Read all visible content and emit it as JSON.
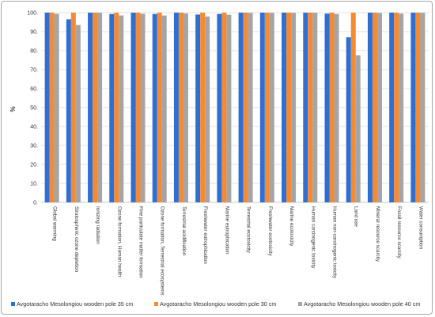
{
  "chart_data": {
    "type": "bar",
    "ylabel": "%",
    "ylim": [
      0,
      100
    ],
    "yticks": [
      "0.",
      "10.",
      "20.",
      "30.",
      "40.",
      "50.",
      "60.",
      "70.",
      "80.",
      "90.",
      "100."
    ],
    "grid": true,
    "legend_position": "bottom",
    "categories": [
      "Global warming",
      "Stratospheric ozone depletion",
      "Ionizing radiation",
      "Ozone formation, Human health",
      "Fine particulate matter formation",
      "Ozone formation, Terrestrial ecosystems",
      "Terrestrial acidification",
      "Freshwater eutrophication",
      "Marine eutrophication",
      "Terrestrial ecotoxicity",
      "Freshwater ecotoxicity",
      "Marine ecotoxicity",
      "Human carcinogenic toxicity",
      "Human non-carcinogenic toxicity",
      "Land use",
      "Mineral resource scarcity",
      "Fossil resource scarcity",
      "Water consumption"
    ],
    "series": [
      {
        "name": "Avgotaracho Mesolongiou wooden pole 35 cm",
        "color": "#2e6fd6",
        "values": [
          100,
          96.5,
          100,
          99.3,
          100,
          99.3,
          100,
          99,
          99.3,
          100,
          100,
          100,
          100,
          99.5,
          87,
          100,
          100,
          100
        ]
      },
      {
        "name": "Avgotaracho Mesolongiou wooden pole 30 cm",
        "color": "#f58a32",
        "values": [
          100,
          100,
          100,
          100,
          100,
          100,
          100,
          100,
          100,
          100,
          100,
          100,
          100,
          100,
          100,
          100,
          100,
          100
        ]
      },
      {
        "name": "Avgotaracho Mesolongiou wooden pole 40 cm",
        "color": "#a5a5a5",
        "values": [
          99.4,
          93.5,
          100,
          98.5,
          99.4,
          98.5,
          99.6,
          98,
          98.9,
          99.9,
          99.9,
          99.9,
          99.9,
          99.3,
          77.5,
          99.8,
          99.5,
          99.9
        ]
      }
    ]
  }
}
